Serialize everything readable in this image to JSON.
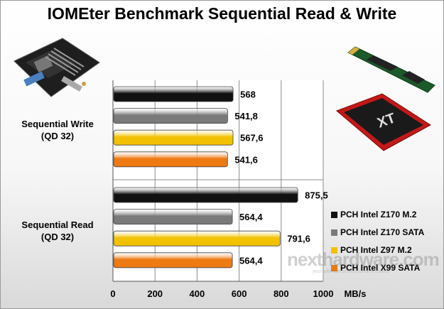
{
  "title": "IOMEter Benchmark Sequential Read & Write",
  "unit_label": "MB/s",
  "watermark": {
    "text": "nexthardware.com",
    "tagline": "your ultimate professional resource"
  },
  "chart_data": {
    "type": "bar",
    "orientation": "horizontal",
    "title": "IOMEter Benchmark Sequential Read & Write",
    "xlabel": "MB/s",
    "xlim": [
      0,
      1000
    ],
    "xticks": [
      0,
      200,
      400,
      600,
      800,
      1000
    ],
    "grid": true,
    "legend_position": "right",
    "categories": [
      {
        "label_lines": [
          "Sequential Write",
          "(QD 32)"
        ]
      },
      {
        "label_lines": [
          "Sequential Read",
          "(QD 32)"
        ]
      }
    ],
    "series": [
      {
        "name": "PCH Intel Z170 M.2",
        "color": "#111111",
        "values": [
          568,
          875.5
        ],
        "labels": [
          "568",
          "875,5"
        ]
      },
      {
        "name": "PCH Intel Z170 SATA",
        "color": "#7a7a7a",
        "values": [
          541.8,
          564.4
        ],
        "labels": [
          "541,8",
          "564,4"
        ]
      },
      {
        "name": "PCH Intel Z97 M.2",
        "color": "#f2c200",
        "values": [
          567.6,
          791.6
        ],
        "labels": [
          "567,6",
          "791,6"
        ]
      },
      {
        "name": "PCH Intel X99 SATA",
        "color": "#ee7a12",
        "values": [
          541.6,
          564.4
        ],
        "labels": [
          "541,6",
          "564,4"
        ]
      }
    ]
  }
}
